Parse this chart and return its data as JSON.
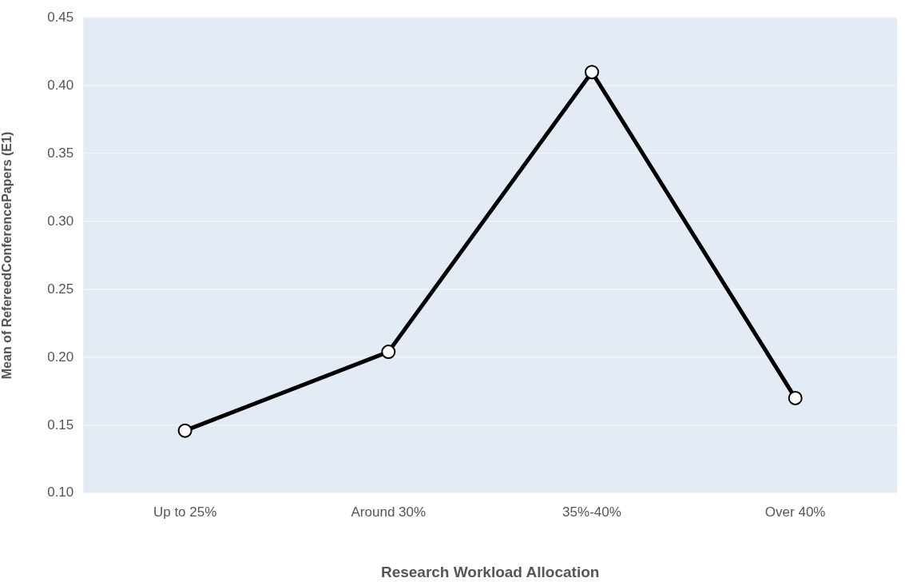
{
  "chart_data": {
    "type": "line",
    "xlabel": "Research Workload Allocation",
    "ylabel": "Mean of RefereedConferencePapers (E1)",
    "categories": [
      "Up to 25%",
      "Around 30%",
      "35%-40%",
      "Over 40%"
    ],
    "series": [
      {
        "color": "#000000",
        "values": [
          0.146,
          0.204,
          0.41,
          0.17
        ]
      }
    ],
    "ylim": [
      0.1,
      0.45
    ],
    "yticks": [
      {
        "value": 0.1,
        "label": "0.10"
      },
      {
        "value": 0.15,
        "label": "0.15"
      },
      {
        "value": 0.2,
        "label": "0.20"
      },
      {
        "value": 0.25,
        "label": "0.25"
      },
      {
        "value": 0.3,
        "label": "0.30"
      },
      {
        "value": 0.35,
        "label": "0.35"
      },
      {
        "value": 0.4,
        "label": "0.40"
      },
      {
        "value": 0.45,
        "label": "0.45"
      }
    ],
    "grid": "y",
    "legend": false,
    "marker": "circle",
    "line_style": "solid"
  }
}
